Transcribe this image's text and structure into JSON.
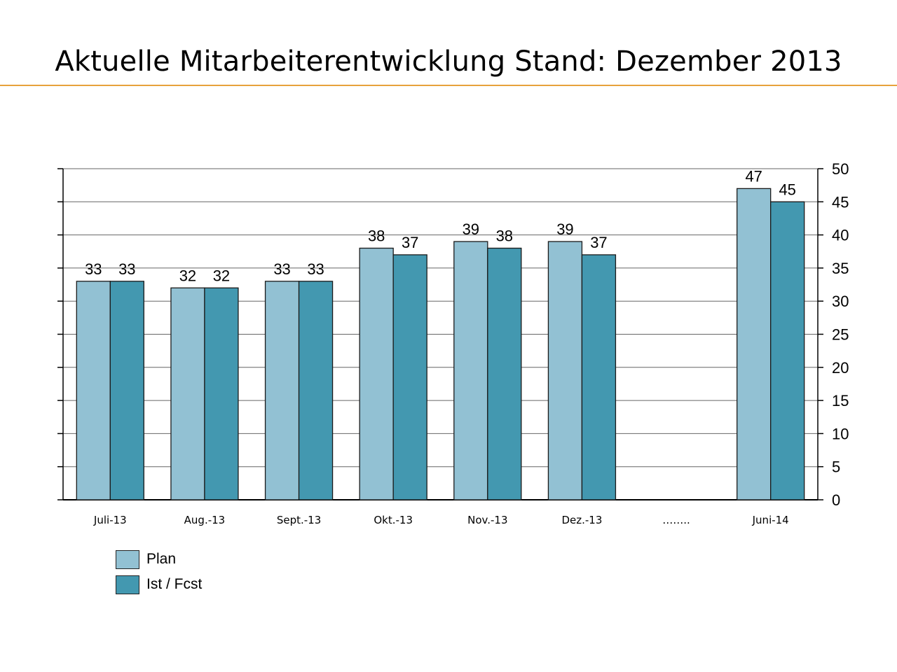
{
  "slide": {
    "title": "Aktuelle Mitarbeiterentwicklung Stand: Dezember 2013"
  },
  "colors": {
    "plan": "#92c1d3",
    "ist": "#4398b0",
    "accent_rule": "#e7a23b",
    "gridline": "#666666",
    "bar_outline": "#1a1a1a"
  },
  "chart_data": {
    "type": "bar",
    "title": "",
    "xlabel": "",
    "ylabel": "",
    "categories": [
      "Juli-13",
      "Aug.-13",
      "Sept.-13",
      "Okt.-13",
      "Nov.-13",
      "Dez.-13",
      "……..",
      "Juni-14"
    ],
    "series": [
      {
        "name": "Plan",
        "values": [
          33,
          32,
          33,
          38,
          39,
          39,
          null,
          47
        ]
      },
      {
        "name": "Ist / Fcst",
        "values": [
          33,
          32,
          33,
          37,
          38,
          37,
          null,
          45
        ]
      }
    ],
    "ylim": [
      0,
      50
    ],
    "yticks": [
      0,
      5,
      10,
      15,
      20,
      25,
      30,
      35,
      40,
      45,
      50
    ],
    "y_axis_side": "right",
    "grid": true,
    "legend_position": "bottom-left",
    "data_labels": true
  },
  "legend": {
    "items": [
      {
        "label": "Plan",
        "color": "#92c1d3"
      },
      {
        "label": "Ist / Fcst",
        "color": "#4398b0"
      }
    ]
  }
}
